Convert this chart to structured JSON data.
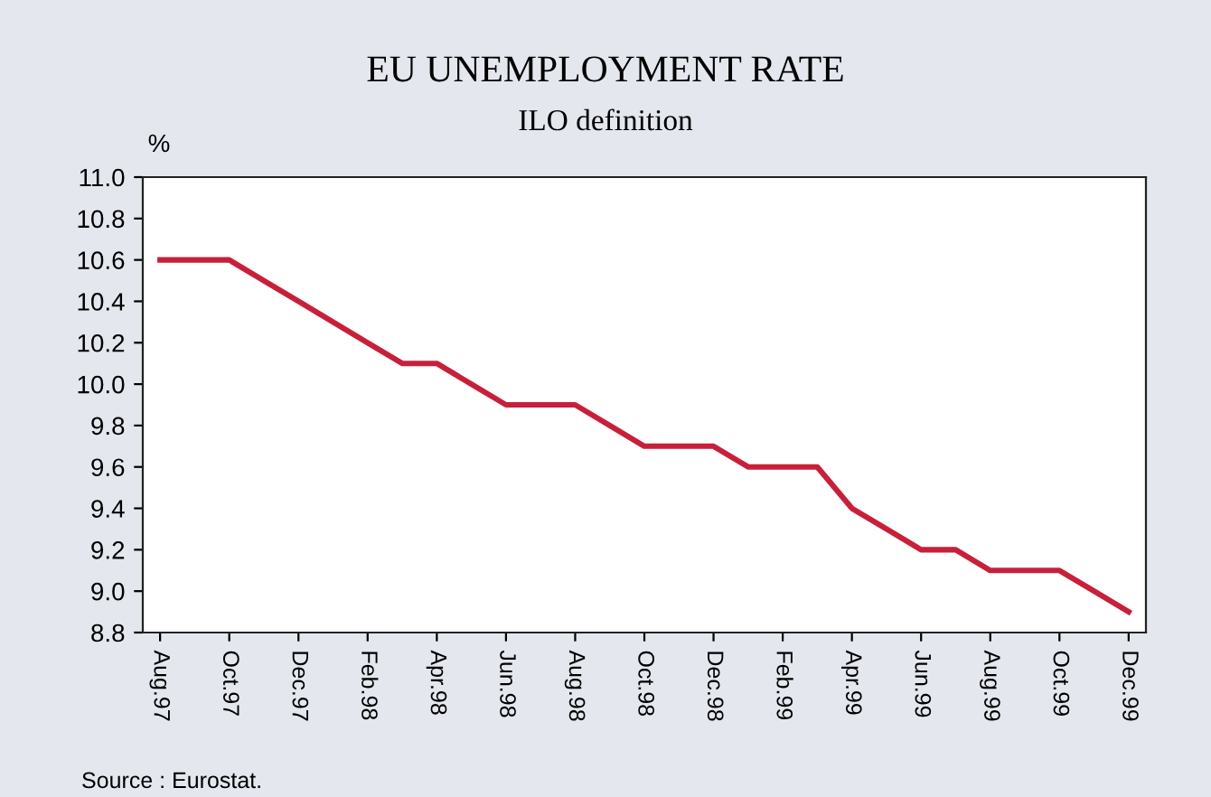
{
  "chart_data": {
    "type": "line",
    "title": "EU UNEMPLOYMENT RATE",
    "subtitle": "ILO definition",
    "ylabel": "%",
    "categories": [
      "Aug.97",
      null,
      "Oct.97",
      null,
      "Dec.97",
      null,
      "Feb.98",
      null,
      "Apr.98",
      null,
      "Jun.98",
      null,
      "Aug.98",
      null,
      "Oct.98",
      null,
      "Dec.98",
      null,
      "Feb.99",
      null,
      "Apr.99",
      null,
      "Jun.99",
      null,
      "Aug.99",
      null,
      "Oct.99",
      null,
      "Dec.99"
    ],
    "series": [
      {
        "color": "#c8203a",
        "values": [
          10.6,
          10.6,
          10.6,
          10.5,
          10.4,
          10.3,
          10.2,
          10.1,
          10.1,
          10.0,
          9.9,
          9.9,
          9.9,
          9.8,
          9.7,
          9.7,
          9.7,
          9.6,
          9.6,
          9.6,
          9.4,
          9.3,
          9.2,
          9.2,
          9.1,
          9.1,
          9.1,
          9.0,
          8.9
        ]
      }
    ],
    "ylim": [
      8.8,
      11.0
    ],
    "yticks": [
      {
        "value": 8.8,
        "label": "8.8"
      },
      {
        "value": 9.0,
        "label": "9.0"
      },
      {
        "value": 9.2,
        "label": "9.2"
      },
      {
        "value": 9.4,
        "label": "9.4"
      },
      {
        "value": 9.6,
        "label": "9.6"
      },
      {
        "value": 9.8,
        "label": "9.8"
      },
      {
        "value": 10.0,
        "label": "10.0"
      },
      {
        "value": 10.2,
        "label": "10.2"
      },
      {
        "value": 10.4,
        "label": "10.4"
      },
      {
        "value": 10.6,
        "label": "10.6"
      },
      {
        "value": 10.8,
        "label": "10.8"
      },
      {
        "value": 11.0,
        "label": "11.0"
      }
    ],
    "grid": false,
    "legend": false,
    "marker": "none",
    "line_style": "solid",
    "annotations": [
      "Source : Eurostat."
    ]
  }
}
